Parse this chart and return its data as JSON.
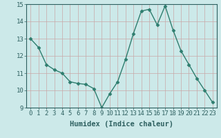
{
  "xlabel": "Humidex (Indice chaleur)",
  "x": [
    0,
    1,
    2,
    3,
    4,
    5,
    6,
    7,
    8,
    9,
    10,
    11,
    12,
    13,
    14,
    15,
    16,
    17,
    18,
    19,
    20,
    21,
    22,
    23
  ],
  "y": [
    13.0,
    12.5,
    11.5,
    11.2,
    11.0,
    10.5,
    10.4,
    10.35,
    10.1,
    9.0,
    9.8,
    10.5,
    11.8,
    13.3,
    14.6,
    14.7,
    13.8,
    14.9,
    13.5,
    12.3,
    11.5,
    10.7,
    10.0,
    9.3
  ],
  "line_color": "#2e7d6e",
  "marker": "D",
  "marker_size": 2.5,
  "line_width": 1.0,
  "bg_color": "#cce9e9",
  "grid_color": "#c8a8a8",
  "ylim": [
    9,
    15
  ],
  "yticks": [
    9,
    10,
    11,
    12,
    13,
    14,
    15
  ],
  "xticks": [
    0,
    1,
    2,
    3,
    4,
    5,
    6,
    7,
    8,
    9,
    10,
    11,
    12,
    13,
    14,
    15,
    16,
    17,
    18,
    19,
    20,
    21,
    22,
    23
  ],
  "xlabel_fontsize": 7.5,
  "tick_fontsize": 6.5
}
